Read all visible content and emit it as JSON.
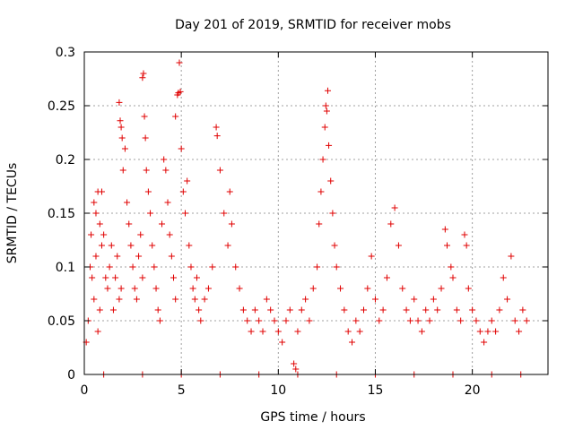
{
  "chart_data": {
    "type": "scatter",
    "title": "Day 201 of 2019, SRMTID for receiver mobs",
    "xlabel": "GPS time / hours",
    "ylabel": "SRMTID / TECUs",
    "xlim": [
      0,
      23.9
    ],
    "ylim": [
      0,
      0.3
    ],
    "x_ticks": [
      0,
      5,
      10,
      15,
      20
    ],
    "x_tick_labels": [
      "0",
      "5",
      "10",
      "15",
      "20"
    ],
    "y_ticks": [
      0,
      0.05,
      0.1,
      0.15,
      0.2,
      0.25,
      0.3
    ],
    "y_tick_labels": [
      "0",
      "0.05",
      "0.1",
      "0.15",
      "0.2",
      "0.25",
      "0.3"
    ],
    "grid": true,
    "marker": "+",
    "color": "#e00000",
    "series": [
      {
        "name": "SRMTID",
        "points": [
          [
            0.1,
            0.03
          ],
          [
            0.2,
            0.05
          ],
          [
            0.3,
            0.1
          ],
          [
            0.35,
            0.13
          ],
          [
            0.4,
            0.09
          ],
          [
            0.5,
            0.07
          ],
          [
            0.6,
            0.11
          ],
          [
            0.7,
            0.04
          ],
          [
            0.8,
            0.06
          ],
          [
            0.9,
            0.12
          ],
          [
            0.5,
            0.16
          ],
          [
            0.6,
            0.15
          ],
          [
            0.7,
            0.17
          ],
          [
            0.8,
            0.14
          ],
          [
            0.9,
            0.17
          ],
          [
            1.0,
            0.13
          ],
          [
            1.1,
            0.09
          ],
          [
            1.2,
            0.08
          ],
          [
            1.3,
            0.1
          ],
          [
            1.4,
            0.12
          ],
          [
            1.5,
            0.06
          ],
          [
            1.6,
            0.09
          ],
          [
            1.7,
            0.11
          ],
          [
            1.8,
            0.07
          ],
          [
            1.9,
            0.08
          ],
          [
            1.8,
            0.253
          ],
          [
            1.85,
            0.236
          ],
          [
            1.9,
            0.23
          ],
          [
            1.95,
            0.22
          ],
          [
            2.0,
            0.19
          ],
          [
            2.1,
            0.21
          ],
          [
            2.2,
            0.16
          ],
          [
            2.3,
            0.14
          ],
          [
            2.4,
            0.12
          ],
          [
            2.5,
            0.1
          ],
          [
            2.6,
            0.08
          ],
          [
            2.7,
            0.07
          ],
          [
            2.8,
            0.11
          ],
          [
            2.9,
            0.13
          ],
          [
            3.0,
            0.09
          ],
          [
            3.0,
            0.276
          ],
          [
            3.05,
            0.28
          ],
          [
            3.1,
            0.24
          ],
          [
            3.15,
            0.22
          ],
          [
            3.2,
            0.19
          ],
          [
            3.3,
            0.17
          ],
          [
            3.4,
            0.15
          ],
          [
            3.5,
            0.12
          ],
          [
            3.6,
            0.1
          ],
          [
            3.7,
            0.08
          ],
          [
            3.8,
            0.06
          ],
          [
            3.9,
            0.05
          ],
          [
            4.0,
            0.14
          ],
          [
            4.1,
            0.2
          ],
          [
            4.2,
            0.19
          ],
          [
            4.3,
            0.16
          ],
          [
            4.4,
            0.13
          ],
          [
            4.5,
            0.11
          ],
          [
            4.6,
            0.09
          ],
          [
            4.7,
            0.07
          ],
          [
            4.7,
            0.24
          ],
          [
            4.8,
            0.26
          ],
          [
            4.85,
            0.262
          ],
          [
            4.9,
            0.29
          ],
          [
            4.95,
            0.263
          ],
          [
            5.0,
            0.21
          ],
          [
            5.1,
            0.17
          ],
          [
            5.2,
            0.15
          ],
          [
            5.3,
            0.18
          ],
          [
            5.4,
            0.12
          ],
          [
            5.5,
            0.1
          ],
          [
            5.6,
            0.08
          ],
          [
            5.7,
            0.07
          ],
          [
            5.8,
            0.09
          ],
          [
            5.9,
            0.06
          ],
          [
            6.0,
            0.05
          ],
          [
            6.2,
            0.07
          ],
          [
            6.4,
            0.08
          ],
          [
            6.6,
            0.1
          ],
          [
            6.8,
            0.23
          ],
          [
            6.85,
            0.222
          ],
          [
            7.0,
            0.19
          ],
          [
            7.2,
            0.15
          ],
          [
            7.4,
            0.12
          ],
          [
            7.5,
            0.17
          ],
          [
            7.6,
            0.14
          ],
          [
            7.8,
            0.1
          ],
          [
            8.0,
            0.08
          ],
          [
            8.2,
            0.06
          ],
          [
            8.4,
            0.05
          ],
          [
            8.6,
            0.04
          ],
          [
            8.8,
            0.06
          ],
          [
            9.0,
            0.05
          ],
          [
            9.2,
            0.04
          ],
          [
            9.4,
            0.07
          ],
          [
            9.6,
            0.06
          ],
          [
            9.8,
            0.05
          ],
          [
            10.0,
            0.04
          ],
          [
            10.2,
            0.03
          ],
          [
            10.4,
            0.05
          ],
          [
            10.6,
            0.06
          ],
          [
            10.8,
            0.01
          ],
          [
            10.9,
            0.005
          ],
          [
            11.0,
            0.04
          ],
          [
            11.2,
            0.06
          ],
          [
            11.4,
            0.07
          ],
          [
            11.6,
            0.05
          ],
          [
            11.8,
            0.08
          ],
          [
            12.0,
            0.1
          ],
          [
            12.1,
            0.14
          ],
          [
            12.2,
            0.17
          ],
          [
            12.3,
            0.2
          ],
          [
            12.4,
            0.23
          ],
          [
            12.45,
            0.25
          ],
          [
            12.5,
            0.245
          ],
          [
            12.55,
            0.264
          ],
          [
            12.6,
            0.213
          ],
          [
            12.7,
            0.18
          ],
          [
            12.8,
            0.15
          ],
          [
            12.9,
            0.12
          ],
          [
            13.0,
            0.1
          ],
          [
            13.2,
            0.08
          ],
          [
            13.4,
            0.06
          ],
          [
            13.6,
            0.04
          ],
          [
            13.8,
            0.03
          ],
          [
            14.0,
            0.05
          ],
          [
            14.2,
            0.04
          ],
          [
            14.4,
            0.06
          ],
          [
            14.6,
            0.08
          ],
          [
            14.8,
            0.11
          ],
          [
            15.0,
            0.07
          ],
          [
            15.2,
            0.05
          ],
          [
            15.4,
            0.06
          ],
          [
            15.6,
            0.09
          ],
          [
            15.8,
            0.14
          ],
          [
            16.0,
            0.155
          ],
          [
            16.2,
            0.12
          ],
          [
            16.4,
            0.08
          ],
          [
            16.6,
            0.06
          ],
          [
            16.8,
            0.05
          ],
          [
            17.0,
            0.07
          ],
          [
            17.2,
            0.05
          ],
          [
            17.4,
            0.04
          ],
          [
            17.6,
            0.06
          ],
          [
            17.8,
            0.05
          ],
          [
            18.0,
            0.07
          ],
          [
            18.2,
            0.06
          ],
          [
            18.4,
            0.08
          ],
          [
            18.6,
            0.135
          ],
          [
            18.7,
            0.12
          ],
          [
            18.9,
            0.1
          ],
          [
            19.0,
            0.09
          ],
          [
            19.2,
            0.06
          ],
          [
            19.4,
            0.05
          ],
          [
            19.6,
            0.13
          ],
          [
            19.7,
            0.12
          ],
          [
            19.8,
            0.08
          ],
          [
            20.0,
            0.06
          ],
          [
            20.2,
            0.05
          ],
          [
            20.4,
            0.04
          ],
          [
            20.6,
            0.03
          ],
          [
            20.8,
            0.04
          ],
          [
            21.0,
            0.05
          ],
          [
            21.2,
            0.04
          ],
          [
            21.4,
            0.06
          ],
          [
            21.6,
            0.09
          ],
          [
            21.8,
            0.07
          ],
          [
            22.0,
            0.11
          ],
          [
            22.2,
            0.05
          ],
          [
            22.4,
            0.04
          ],
          [
            22.6,
            0.06
          ],
          [
            22.8,
            0.05
          ],
          [
            1.0,
            0.0
          ],
          [
            3.0,
            0.0
          ],
          [
            5.0,
            0.0
          ],
          [
            7.0,
            0.0
          ],
          [
            9.0,
            0.0
          ],
          [
            11.0,
            0.0
          ],
          [
            13.0,
            0.0
          ],
          [
            15.0,
            0.0
          ],
          [
            17.0,
            0.0
          ],
          [
            19.0,
            0.0
          ],
          [
            21.0,
            0.0
          ],
          [
            22.5,
            0.0
          ]
        ]
      }
    ]
  }
}
